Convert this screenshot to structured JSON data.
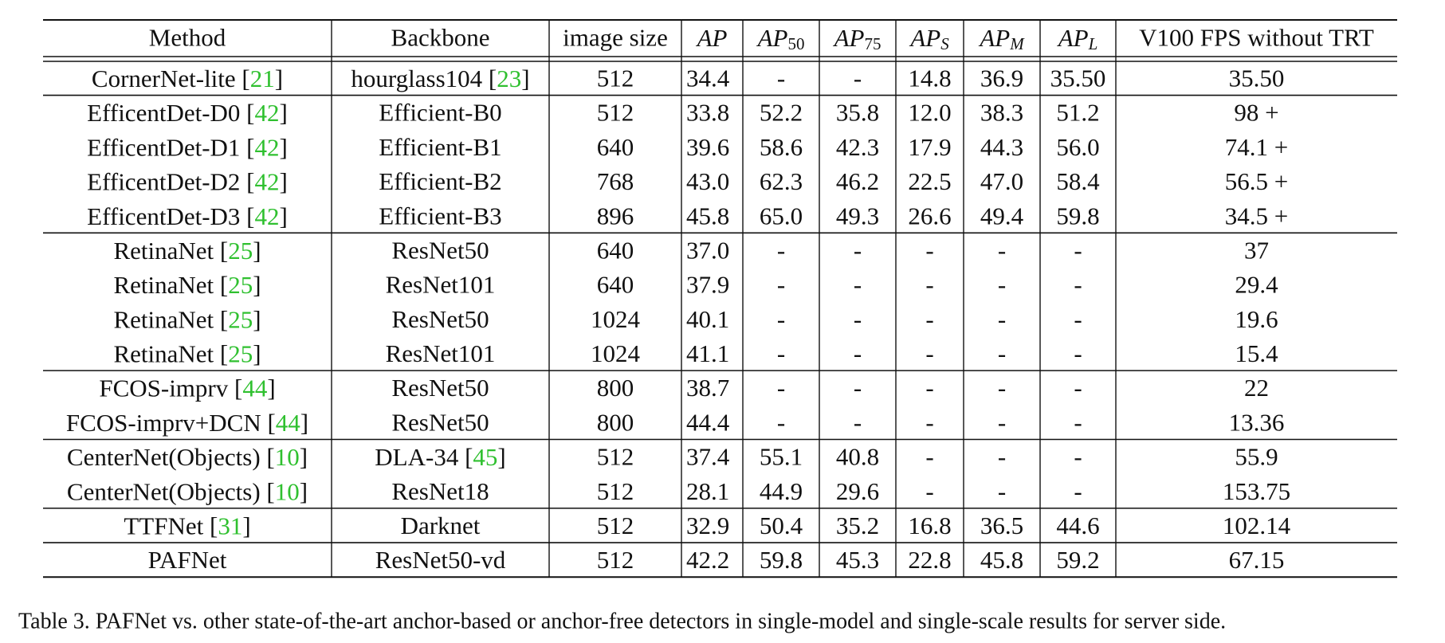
{
  "table": {
    "header": [
      "Method",
      "Backbone",
      "image size",
      {
        "italic": "AP"
      },
      {
        "italic": "AP",
        "sub": "50"
      },
      {
        "italic": "AP",
        "sub": "75"
      },
      {
        "italic": "AP",
        "sub": "S"
      },
      {
        "italic": "AP",
        "sub": "M"
      },
      {
        "italic": "AP",
        "sub": "L"
      },
      "V100 FPS without TRT"
    ],
    "groups": [
      [
        [
          [
            "CornerNet-lite [",
            "21",
            "]"
          ],
          [
            "hourglass104 [",
            "23",
            "]"
          ],
          "512",
          "34.4",
          "-",
          "-",
          "14.8",
          "36.9",
          "35.50",
          "35.50"
        ]
      ],
      [
        [
          [
            "EfficentDet-D0 [",
            "42",
            "]"
          ],
          "Efficient-B0",
          "512",
          "33.8",
          "52.2",
          "35.8",
          "12.0",
          "38.3",
          "51.2",
          "98 +"
        ],
        [
          [
            "EfficentDet-D1 [",
            "42",
            "]"
          ],
          "Efficient-B1",
          "640",
          "39.6",
          "58.6",
          "42.3",
          "17.9",
          "44.3",
          "56.0",
          "74.1 +"
        ],
        [
          [
            "EfficentDet-D2 [",
            "42",
            "]"
          ],
          "Efficient-B2",
          "768",
          "43.0",
          "62.3",
          "46.2",
          "22.5",
          "47.0",
          "58.4",
          "56.5 +"
        ],
        [
          [
            "EfficentDet-D3 [",
            "42",
            "]"
          ],
          "Efficient-B3",
          "896",
          "45.8",
          "65.0",
          "49.3",
          "26.6",
          "49.4",
          "59.8",
          "34.5 +"
        ]
      ],
      [
        [
          [
            "RetinaNet [",
            "25",
            "]"
          ],
          "ResNet50",
          "640",
          "37.0",
          "-",
          "-",
          "-",
          "-",
          "-",
          "37"
        ],
        [
          [
            "RetinaNet [",
            "25",
            "]"
          ],
          "ResNet101",
          "640",
          "37.9",
          "-",
          "-",
          "-",
          "-",
          "-",
          "29.4"
        ],
        [
          [
            "RetinaNet [",
            "25",
            "]"
          ],
          "ResNet50",
          "1024",
          "40.1",
          "-",
          "-",
          "-",
          "-",
          "-",
          "19.6"
        ],
        [
          [
            "RetinaNet [",
            "25",
            "]"
          ],
          "ResNet101",
          "1024",
          "41.1",
          "-",
          "-",
          "-",
          "-",
          "-",
          "15.4"
        ]
      ],
      [
        [
          [
            "FCOS-imprv [",
            "44",
            "]"
          ],
          "ResNet50",
          "800",
          "38.7",
          "-",
          "-",
          "-",
          "-",
          "-",
          "22"
        ],
        [
          [
            "FCOS-imprv+DCN [",
            "44",
            "]"
          ],
          "ResNet50",
          "800",
          "44.4",
          "-",
          "-",
          "-",
          "-",
          "-",
          "13.36"
        ]
      ],
      [
        [
          [
            "CenterNet(Objects) [",
            "10",
            "]"
          ],
          [
            "DLA-34 [",
            "45",
            "]"
          ],
          "512",
          "37.4",
          "55.1",
          "40.8",
          "-",
          "-",
          "-",
          "55.9"
        ],
        [
          [
            "CenterNet(Objects) [",
            "10",
            "]"
          ],
          "ResNet18",
          "512",
          "28.1",
          "44.9",
          "29.6",
          "-",
          "-",
          "-",
          "153.75"
        ]
      ],
      [
        [
          [
            "TTFNet [",
            "31",
            "]"
          ],
          "Darknet",
          "512",
          "32.9",
          "50.4",
          "35.2",
          "16.8",
          "36.5",
          "44.6",
          "102.14"
        ]
      ],
      [
        [
          "PAFNet",
          "ResNet50-vd",
          "512",
          "42.2",
          "59.8",
          "45.3",
          "22.8",
          "45.8",
          "59.2",
          "67.15"
        ]
      ]
    ],
    "caption": "Table 3. PAFNet vs. other state-of-the-art anchor-based or anchor-free detectors in single-model and single-scale results for server side."
  }
}
